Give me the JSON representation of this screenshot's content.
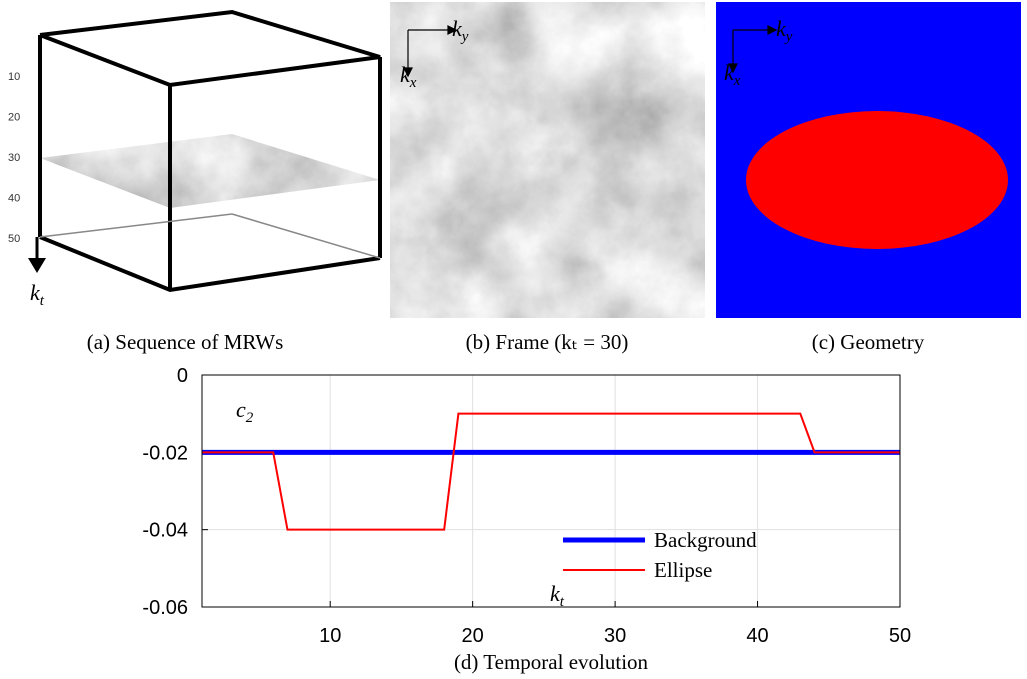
{
  "panels": {
    "a": {
      "caption": "(a) Sequence of MRWs",
      "ticks": [
        10,
        20,
        30,
        40,
        50
      ],
      "axis_label": {
        "base": "k",
        "sub": "t"
      }
    },
    "b": {
      "caption": "(b) Frame (kₜ = 30)",
      "x_label": {
        "base": "k",
        "sub": "x"
      },
      "y_label": {
        "base": "k",
        "sub": "y"
      }
    },
    "c": {
      "caption": "(c) Geometry",
      "x_label": {
        "base": "k",
        "sub": "x"
      },
      "y_label": {
        "base": "k",
        "sub": "y"
      }
    }
  },
  "chart_data": {
    "type": "line",
    "caption": "(d) Temporal evolution",
    "annotation": {
      "base": "c",
      "sub": "2"
    },
    "x_label": {
      "base": "k",
      "sub": "t"
    },
    "xlim": [
      1,
      50
    ],
    "ylim": [
      -0.06,
      0
    ],
    "xticks": [
      10,
      20,
      30,
      40,
      50
    ],
    "yticks": [
      -0.06,
      -0.04,
      -0.02,
      0
    ],
    "grid": true,
    "series": [
      {
        "name": "Background",
        "color": "#0000ff",
        "width": 5,
        "x": [
          1,
          50
        ],
        "values": [
          -0.02,
          -0.02
        ]
      },
      {
        "name": "Ellipse",
        "color": "#ff0000",
        "width": 2,
        "x": [
          1,
          6,
          7,
          18,
          19,
          43,
          44,
          50
        ],
        "values": [
          -0.02,
          -0.02,
          -0.04,
          -0.04,
          -0.01,
          -0.01,
          -0.02,
          -0.02
        ]
      }
    ]
  }
}
